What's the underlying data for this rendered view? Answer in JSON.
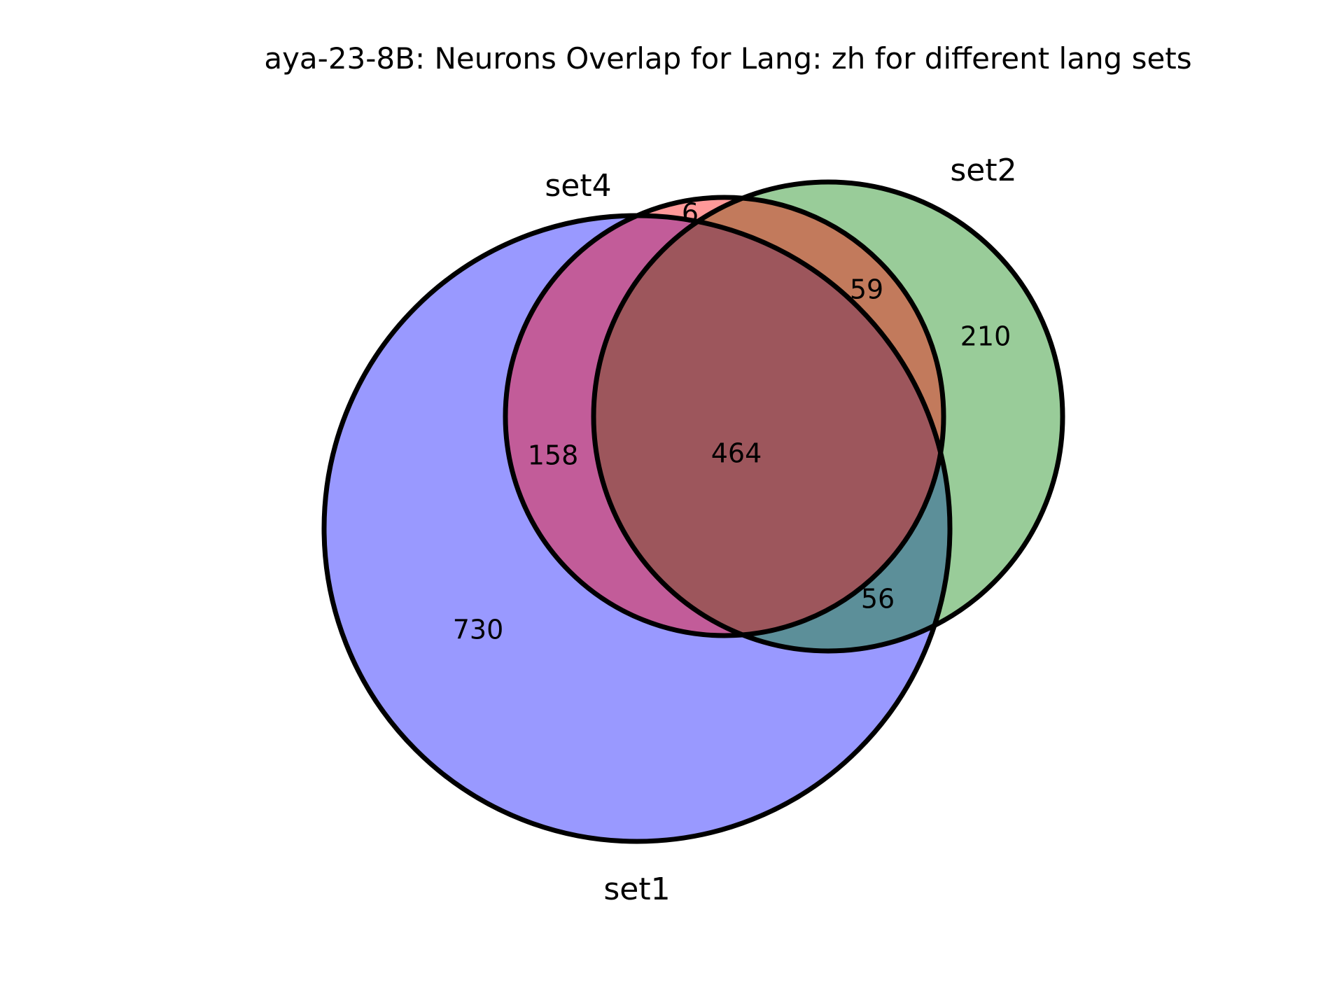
{
  "title": "aya-23-8B: Neurons Overlap for Lang: zh for different lang sets",
  "chart_data": {
    "type": "venn",
    "sets": [
      {
        "name": "set1",
        "color": "#0000ff"
      },
      {
        "name": "set2",
        "color": "#008000"
      },
      {
        "name": "set4",
        "color": "#ff0000"
      }
    ],
    "regions": [
      {
        "sets": [
          "set1"
        ],
        "value": "730"
      },
      {
        "sets": [
          "set2"
        ],
        "value": "210"
      },
      {
        "sets": [
          "set4"
        ],
        "value": "6"
      },
      {
        "sets": [
          "set1",
          "set4"
        ],
        "value": "158"
      },
      {
        "sets": [
          "set2",
          "set4"
        ],
        "value": "59"
      },
      {
        "sets": [
          "set1",
          "set2"
        ],
        "value": "56"
      },
      {
        "sets": [
          "set1",
          "set2",
          "set4"
        ],
        "value": "464"
      }
    ],
    "fill_opacity": 0.4
  }
}
